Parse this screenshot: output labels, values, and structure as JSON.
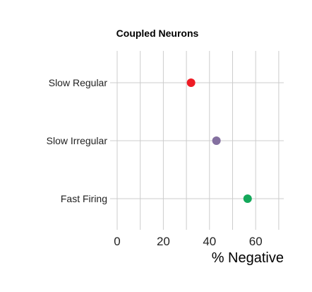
{
  "chart_data": {
    "type": "scatter",
    "title": "Coupled Neurons",
    "xlabel": "% Negative",
    "ylabel": "",
    "xlim": [
      0,
      70
    ],
    "xticks": [
      0,
      20,
      40,
      60
    ],
    "x_minor_gridlines": [
      10,
      30,
      50,
      70
    ],
    "grid": true,
    "legend": "none",
    "categories": [
      "Slow Regular",
      "Slow Irregular",
      "Fast Firing"
    ],
    "values": [
      32,
      43,
      56.5
    ],
    "colors": [
      "#ee1c25",
      "#8470a0",
      "#14a85a"
    ]
  }
}
